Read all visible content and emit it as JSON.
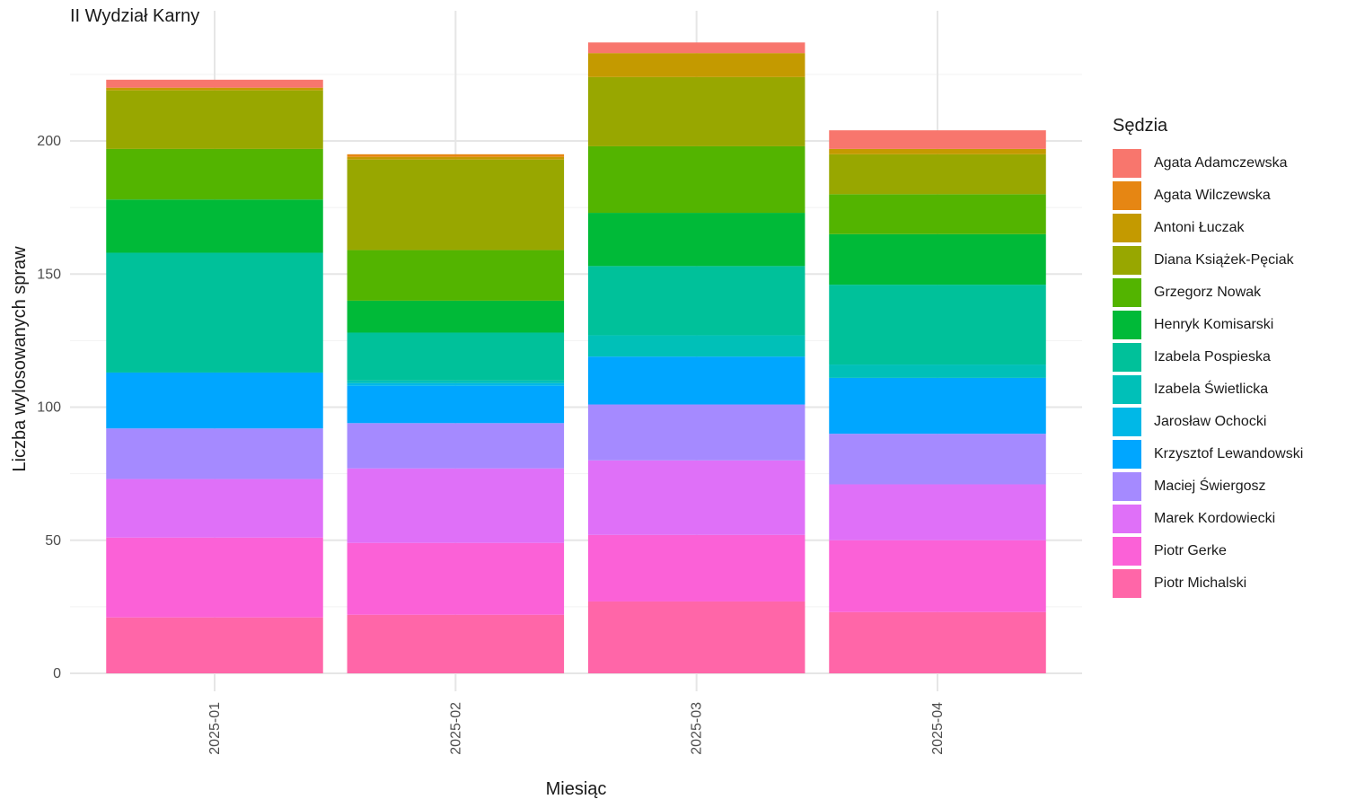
{
  "chart_data": {
    "type": "bar",
    "stacked": true,
    "title": "II Wydział Karny",
    "xlabel": "Miesiąc",
    "ylabel": "Liczba wylosowanych spraw",
    "categories": [
      "2025-01",
      "2025-02",
      "2025-03",
      "2025-04"
    ],
    "ylim": [
      0,
      245
    ],
    "yticks": [
      0,
      50,
      100,
      150,
      200
    ],
    "grid": true,
    "legend_title": "Sędzia",
    "legend_position": "right",
    "series": [
      {
        "name": "Piotr Michalski",
        "color": "#FF66A8",
        "values": [
          21,
          22,
          27,
          23
        ]
      },
      {
        "name": "Piotr Gerke",
        "color": "#FB61D7",
        "values": [
          30,
          27,
          25,
          27
        ]
      },
      {
        "name": "Marek Kordowiecki",
        "color": "#DF70F8",
        "values": [
          22,
          28,
          28,
          21
        ]
      },
      {
        "name": "Maciej Świergosz",
        "color": "#A58AFF",
        "values": [
          19,
          17,
          21,
          19
        ]
      },
      {
        "name": "Krzysztof Lewandowski",
        "color": "#00A6FF",
        "values": [
          21,
          14,
          18,
          21
        ]
      },
      {
        "name": "Jarosław Ochocki",
        "color": "#00B8E7",
        "values": [
          0,
          1,
          0,
          0
        ]
      },
      {
        "name": "Izabela Świetlicka",
        "color": "#00C0B8",
        "values": [
          0,
          1,
          8,
          5
        ]
      },
      {
        "name": "Izabela Pospieska",
        "color": "#00C19A",
        "values": [
          45,
          18,
          26,
          30
        ]
      },
      {
        "name": "Henryk Komisarski",
        "color": "#00BA38",
        "values": [
          20,
          12,
          20,
          19
        ]
      },
      {
        "name": "Grzegorz Nowak",
        "color": "#53B400",
        "values": [
          19,
          19,
          25,
          15
        ]
      },
      {
        "name": "Diana Książek-Pęciak",
        "color": "#98A700",
        "values": [
          22,
          34,
          26,
          15
        ]
      },
      {
        "name": "Antoni Łuczak",
        "color": "#C49A00",
        "values": [
          1,
          1,
          9,
          2
        ]
      },
      {
        "name": "Agata Wilczewska",
        "color": "#E68613",
        "values": [
          0,
          1,
          0,
          0
        ]
      },
      {
        "name": "Agata Adamczewska",
        "color": "#F8766D",
        "values": [
          3,
          0,
          4,
          7
        ]
      }
    ],
    "legend_order": [
      "Agata Adamczewska",
      "Agata Wilczewska",
      "Antoni Łuczak",
      "Diana Książek-Pęciak",
      "Grzegorz Nowak",
      "Henryk Komisarski",
      "Izabela Pospieska",
      "Izabela Świetlicka",
      "Jarosław Ochocki",
      "Krzysztof Lewandowski",
      "Maciej Świergosz",
      "Marek Kordowiecki",
      "Piotr Gerke",
      "Piotr Michalski"
    ]
  }
}
